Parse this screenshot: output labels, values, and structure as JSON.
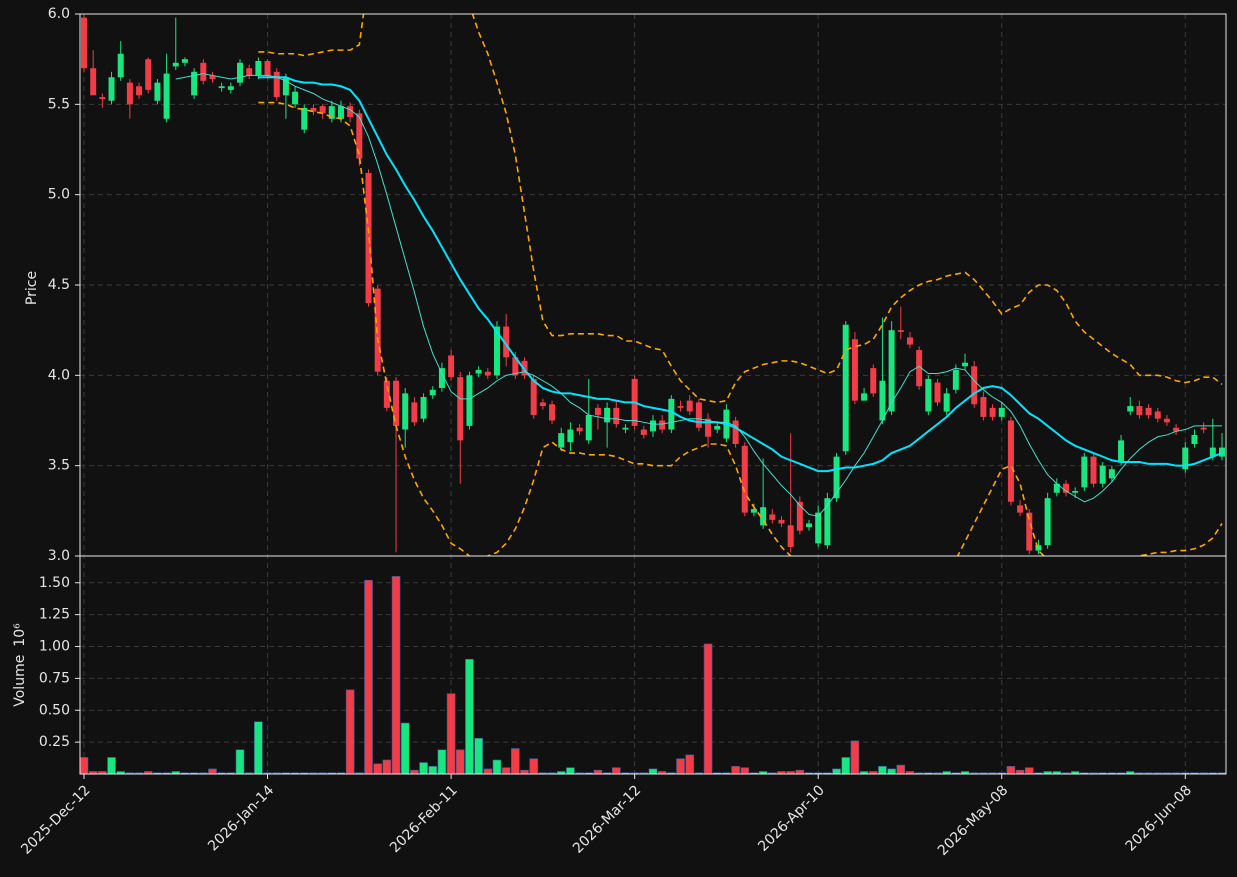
{
  "chart_data": {
    "type": "candlestick",
    "categories": [
      "2025-Dec-12",
      null,
      null,
      null,
      null,
      null,
      null,
      null,
      null,
      null,
      null,
      null,
      null,
      null,
      null,
      null,
      null,
      null,
      null,
      null,
      "2026-Jan-14",
      null,
      null,
      null,
      null,
      null,
      null,
      null,
      null,
      null,
      null,
      null,
      null,
      null,
      null,
      null,
      null,
      null,
      null,
      null,
      "2026-Feb-11",
      null,
      null,
      null,
      null,
      null,
      null,
      null,
      null,
      null,
      null,
      null,
      null,
      null,
      null,
      null,
      null,
      null,
      null,
      null,
      "2026-Mar-12",
      null,
      null,
      null,
      null,
      null,
      null,
      null,
      null,
      null,
      null,
      null,
      null,
      null,
      null,
      null,
      null,
      null,
      null,
      null,
      "2026-Apr-10",
      null,
      null,
      null,
      null,
      null,
      null,
      null,
      null,
      null,
      null,
      null,
      null,
      null,
      null,
      null,
      null,
      null,
      null,
      null,
      "2026-May-08",
      null,
      null,
      null,
      null,
      null,
      null,
      null,
      null,
      null,
      null,
      null,
      null,
      null,
      null,
      null,
      null,
      null,
      null,
      null,
      "2026-Jun-08",
      null,
      null,
      null,
      null
    ],
    "open": [
      5.98,
      5.7,
      5.54,
      5.52,
      5.65,
      5.62,
      5.6,
      5.75,
      5.52,
      5.42,
      5.71,
      5.73,
      5.55,
      5.73,
      5.66,
      5.59,
      5.58,
      5.62,
      5.7,
      5.66,
      5.74,
      5.68,
      5.55,
      5.5,
      5.36,
      5.48,
      5.49,
      5.42,
      5.42,
      5.49,
      5.45,
      5.12,
      4.48,
      3.97,
      3.97,
      3.7,
      3.85,
      3.76,
      3.89,
      3.93,
      4.11,
      3.99,
      3.72,
      4.01,
      4.02,
      4.0,
      4.27,
      4.1,
      4.08,
      3.98,
      3.85,
      3.84,
      3.6,
      3.63,
      3.71,
      3.64,
      3.82,
      3.74,
      3.82,
      3.7,
      3.98,
      3.7,
      3.69,
      3.75,
      3.7,
      3.83,
      3.86,
      3.85,
      3.76,
      3.7,
      3.65,
      3.75,
      3.61,
      3.24,
      3.17,
      3.23,
      3.2,
      3.17,
      3.3,
      3.16,
      3.07,
      3.06,
      3.32,
      3.58,
      4.2,
      3.86,
      4.04,
      3.75,
      3.8,
      4.25,
      4.21,
      4.14,
      3.8,
      3.96,
      3.8,
      3.92,
      4.05,
      4.05,
      3.88,
      3.82,
      3.77,
      3.75,
      3.28,
      3.24,
      3.03,
      3.06,
      3.35,
      3.4,
      3.35,
      3.38,
      3.55,
      3.4,
      3.43,
      3.52,
      3.8,
      3.83,
      3.82,
      3.8,
      3.76,
      3.71,
      3.48,
      3.62,
      3.71,
      3.55,
      3.55
    ],
    "high": [
      6.0,
      5.8,
      5.56,
      5.68,
      5.85,
      5.64,
      5.62,
      5.76,
      5.64,
      5.78,
      5.98,
      5.76,
      5.7,
      5.75,
      5.68,
      5.62,
      5.62,
      5.75,
      5.72,
      5.76,
      5.75,
      5.7,
      5.67,
      5.6,
      5.5,
      5.5,
      5.5,
      5.52,
      5.52,
      5.51,
      5.47,
      5.14,
      4.5,
      3.99,
      3.99,
      3.93,
      3.88,
      3.9,
      3.94,
      4.07,
      4.14,
      4.02,
      4.02,
      4.05,
      4.04,
      4.3,
      4.34,
      4.13,
      4.1,
      4.0,
      3.87,
      3.86,
      3.71,
      3.74,
      3.73,
      3.98,
      3.84,
      3.85,
      3.86,
      3.73,
      4.0,
      3.72,
      3.78,
      3.78,
      3.89,
      3.86,
      3.89,
      3.87,
      3.79,
      3.74,
      3.84,
      3.77,
      3.63,
      3.29,
      3.54,
      3.26,
      3.22,
      3.68,
      3.33,
      3.2,
      3.28,
      3.35,
      3.57,
      4.3,
      4.24,
      3.93,
      4.06,
      4.32,
      4.3,
      4.38,
      4.24,
      4.16,
      4.0,
      3.98,
      3.93,
      4.06,
      4.12,
      4.08,
      3.91,
      3.84,
      3.85,
      3.77,
      3.31,
      3.26,
      3.09,
      3.35,
      3.43,
      3.42,
      3.38,
      3.57,
      3.57,
      3.52,
      3.5,
      3.67,
      3.88,
      3.86,
      3.84,
      3.82,
      3.78,
      3.73,
      3.63,
      3.7,
      3.74,
      3.76,
      3.68
    ],
    "low": [
      5.68,
      5.55,
      5.48,
      5.5,
      5.63,
      5.42,
      5.53,
      5.56,
      5.5,
      5.4,
      5.69,
      5.71,
      5.53,
      5.61,
      5.62,
      5.57,
      5.56,
      5.6,
      5.64,
      5.64,
      5.64,
      5.52,
      5.42,
      5.48,
      5.34,
      5.44,
      5.42,
      5.4,
      5.4,
      5.4,
      5.16,
      4.38,
      4.0,
      3.8,
      3.02,
      3.6,
      3.72,
      3.74,
      3.87,
      3.91,
      3.97,
      3.4,
      3.7,
      3.99,
      3.98,
      3.98,
      4.05,
      3.98,
      3.98,
      3.76,
      3.81,
      3.73,
      3.58,
      3.58,
      3.67,
      3.62,
      3.7,
      3.6,
      3.71,
      3.68,
      3.7,
      3.65,
      3.66,
      3.68,
      3.68,
      3.8,
      3.78,
      3.69,
      3.6,
      3.68,
      3.63,
      3.6,
      3.22,
      3.22,
      3.15,
      3.18,
      3.16,
      3.02,
      3.12,
      3.14,
      3.05,
      3.04,
      3.3,
      3.56,
      3.84,
      3.88,
      3.88,
      3.73,
      3.78,
      4.2,
      4.15,
      3.92,
      3.78,
      3.83,
      3.78,
      3.9,
      4.03,
      3.82,
      3.75,
      3.75,
      3.75,
      3.28,
      3.22,
      3.01,
      3.01,
      3.04,
      3.33,
      3.33,
      3.32,
      3.36,
      3.38,
      3.38,
      3.41,
      3.5,
      3.78,
      3.76,
      3.76,
      3.74,
      3.72,
      3.67,
      3.46,
      3.6,
      3.68,
      3.53,
      3.53
    ],
    "close": [
      5.7,
      5.55,
      5.53,
      5.65,
      5.78,
      5.5,
      5.55,
      5.58,
      5.62,
      5.67,
      5.73,
      5.75,
      5.68,
      5.63,
      5.64,
      5.6,
      5.6,
      5.73,
      5.66,
      5.74,
      5.66,
      5.54,
      5.65,
      5.57,
      5.48,
      5.46,
      5.45,
      5.49,
      5.49,
      5.43,
      5.2,
      4.4,
      4.02,
      3.82,
      3.72,
      3.9,
      3.74,
      3.88,
      3.92,
      4.04,
      3.99,
      3.64,
      4.0,
      4.03,
      4.0,
      4.27,
      4.1,
      4.0,
      4.0,
      3.78,
      3.83,
      3.75,
      3.68,
      3.7,
      3.69,
      3.78,
      3.78,
      3.82,
      3.73,
      3.71,
      3.72,
      3.67,
      3.75,
      3.7,
      3.87,
      3.82,
      3.8,
      3.71,
      3.66,
      3.72,
      3.81,
      3.62,
      3.24,
      3.26,
      3.27,
      3.2,
      3.18,
      3.05,
      3.14,
      3.18,
      3.24,
      3.32,
      3.55,
      4.28,
      3.86,
      3.9,
      3.9,
      3.97,
      4.25,
      4.24,
      4.17,
      3.94,
      3.98,
      3.85,
      3.9,
      4.03,
      4.07,
      3.84,
      3.77,
      3.77,
      3.82,
      3.3,
      3.24,
      3.03,
      3.06,
      3.32,
      3.4,
      3.35,
      3.36,
      3.55,
      3.4,
      3.5,
      3.48,
      3.64,
      3.83,
      3.78,
      3.78,
      3.76,
      3.74,
      3.69,
      3.6,
      3.67,
      3.7,
      3.6,
      3.6
    ],
    "volume": [
      0.13,
      0.02,
      0.02,
      0.13,
      0.02,
      0.01,
      0.01,
      0.02,
      0.01,
      0.01,
      0.02,
      0.01,
      0.01,
      0.01,
      0.04,
      0.01,
      0.01,
      0.19,
      0.01,
      0.41,
      0.01,
      0.01,
      0.01,
      0.01,
      0.01,
      0.01,
      0.01,
      0.01,
      0.01,
      0.66,
      0.01,
      1.52,
      0.08,
      0.11,
      1.55,
      0.4,
      0.03,
      0.09,
      0.06,
      0.19,
      0.63,
      0.19,
      0.9,
      0.28,
      0.04,
      0.11,
      0.05,
      0.2,
      0.03,
      0.12,
      0.01,
      0.01,
      0.02,
      0.05,
      0.01,
      0.01,
      0.03,
      0.01,
      0.05,
      0.01,
      0.01,
      0.01,
      0.04,
      0.02,
      0.01,
      0.12,
      0.15,
      0.01,
      1.02,
      0.01,
      0.01,
      0.06,
      0.05,
      0.01,
      0.02,
      0.01,
      0.02,
      0.02,
      0.03,
      0.01,
      0.01,
      0.01,
      0.04,
      0.13,
      0.26,
      0.02,
      0.02,
      0.06,
      0.04,
      0.07,
      0.02,
      0.01,
      0.01,
      0.01,
      0.02,
      0.01,
      0.02,
      0.01,
      0.01,
      0.01,
      0.01,
      0.06,
      0.03,
      0.05,
      0.01,
      0.02,
      0.02,
      0.01,
      0.02,
      0.01,
      0.01,
      0.01,
      0.01,
      0.01,
      0.02,
      0.01,
      0.01,
      0.01,
      0.01,
      0.01,
      0.01,
      0.01,
      0.01,
      0.01,
      0.01
    ],
    "up_color": "#19e680",
    "down_color": "#f23c48",
    "ylabel": "Price",
    "volume_ylabel": "Volume",
    "volume_scale": "10⁶",
    "ylim": [
      3.0,
      6.0
    ],
    "yticks": [
      {
        "value": 3.0,
        "label": "3.0"
      },
      {
        "value": 3.5,
        "label": "3.5"
      },
      {
        "value": 4.0,
        "label": "4.0"
      },
      {
        "value": 4.5,
        "label": "4.5"
      },
      {
        "value": 5.0,
        "label": "5.0"
      },
      {
        "value": 5.5,
        "label": "5.5"
      },
      {
        "value": 6.0,
        "label": "6.0"
      }
    ],
    "volume_ylim": [
      0,
      1.71
    ],
    "volume_yticks": [
      {
        "value": 0.25,
        "label": "0.25"
      },
      {
        "value": 0.5,
        "label": "0.50"
      },
      {
        "value": 0.75,
        "label": "0.75"
      },
      {
        "value": 1.0,
        "label": "1.00"
      },
      {
        "value": 1.25,
        "label": "1.25"
      },
      {
        "value": 1.5,
        "label": "1.50"
      }
    ],
    "grid": true,
    "overlays": [
      {
        "color": "#ffa500",
        "width": 1.6,
        "dash": true,
        "values": [
          null,
          null,
          null,
          null,
          null,
          null,
          null,
          null,
          null,
          null,
          null,
          null,
          null,
          null,
          null,
          null,
          null,
          null,
          null,
          5.79,
          5.79,
          5.78,
          5.78,
          5.78,
          5.77,
          5.78,
          5.79,
          5.8,
          5.8,
          5.8,
          5.83,
          6.2,
          6.5,
          6.8,
          7.0,
          7.1,
          7.2,
          7.2,
          7.1,
          6.9,
          6.6,
          6.3,
          6.05,
          5.9,
          5.78,
          5.62,
          5.45,
          5.22,
          4.9,
          4.58,
          4.3,
          4.22,
          4.22,
          4.23,
          4.23,
          4.23,
          4.23,
          4.22,
          4.22,
          4.19,
          4.19,
          4.17,
          4.15,
          4.14,
          4.05,
          3.97,
          3.92,
          3.87,
          3.86,
          3.85,
          3.86,
          3.96,
          4.02,
          4.04,
          4.06,
          4.07,
          4.08,
          4.08,
          4.07,
          4.05,
          4.03,
          4.01,
          4.03,
          4.14,
          4.16,
          4.17,
          4.2,
          4.28,
          4.38,
          4.43,
          4.47,
          4.5,
          4.52,
          4.53,
          4.55,
          4.56,
          4.57,
          4.53,
          4.47,
          4.41,
          4.34,
          4.37,
          4.39,
          4.46,
          4.5,
          4.5,
          4.47,
          4.4,
          4.3,
          4.24,
          4.2,
          4.16,
          4.12,
          4.09,
          4.06,
          4.0,
          4.0,
          4.0,
          3.99,
          3.97,
          3.96,
          3.97,
          3.99,
          3.99,
          3.95
        ]
      },
      {
        "color": "#ffa500",
        "width": 1.6,
        "dash": true,
        "values": [
          null,
          null,
          null,
          null,
          null,
          null,
          null,
          null,
          null,
          null,
          null,
          null,
          null,
          null,
          null,
          null,
          null,
          null,
          null,
          5.51,
          5.51,
          5.51,
          5.5,
          5.48,
          5.47,
          5.46,
          5.45,
          5.43,
          5.42,
          5.38,
          5.22,
          4.8,
          4.2,
          3.95,
          3.72,
          3.55,
          3.42,
          3.32,
          3.25,
          3.17,
          3.07,
          3.04,
          3.0,
          2.98,
          3.0,
          3.02,
          3.07,
          3.15,
          3.27,
          3.42,
          3.6,
          3.63,
          3.59,
          3.57,
          3.57,
          3.56,
          3.56,
          3.56,
          3.55,
          3.53,
          3.51,
          3.51,
          3.5,
          3.5,
          3.5,
          3.55,
          3.58,
          3.6,
          3.62,
          3.62,
          3.61,
          3.5,
          3.35,
          3.27,
          3.2,
          3.12,
          3.05,
          3.0,
          2.95,
          2.92,
          2.9,
          2.93,
          2.93,
          2.84,
          2.82,
          2.83,
          2.82,
          2.78,
          2.76,
          2.75,
          2.75,
          2.78,
          2.82,
          2.87,
          2.92,
          2.98,
          3.08,
          3.18,
          3.28,
          3.38,
          3.48,
          3.5,
          3.4,
          3.2,
          3.03,
          2.98,
          2.95,
          2.92,
          2.92,
          2.94,
          2.94,
          2.94,
          2.95,
          2.96,
          2.98,
          3.0,
          3.01,
          3.02,
          3.02,
          3.03,
          3.03,
          3.04,
          3.06,
          3.1,
          3.18
        ]
      },
      {
        "color": "#00e5ff",
        "width": 2,
        "dash": false,
        "values": [
          null,
          null,
          null,
          null,
          null,
          null,
          null,
          null,
          null,
          null,
          null,
          null,
          null,
          null,
          null,
          null,
          null,
          null,
          null,
          5.65,
          5.65,
          5.65,
          5.65,
          5.63,
          5.62,
          5.62,
          5.61,
          5.61,
          5.6,
          5.58,
          5.52,
          5.42,
          5.32,
          5.22,
          5.14,
          5.05,
          4.97,
          4.88,
          4.8,
          4.71,
          4.62,
          4.53,
          4.45,
          4.37,
          4.31,
          4.24,
          4.17,
          4.1,
          4.03,
          3.97,
          3.93,
          3.91,
          3.9,
          3.9,
          3.89,
          3.88,
          3.87,
          3.87,
          3.86,
          3.85,
          3.85,
          3.83,
          3.82,
          3.81,
          3.8,
          3.77,
          3.75,
          3.74,
          3.74,
          3.74,
          3.73,
          3.71,
          3.68,
          3.65,
          3.62,
          3.59,
          3.55,
          3.53,
          3.51,
          3.49,
          3.47,
          3.47,
          3.48,
          3.49,
          3.49,
          3.5,
          3.51,
          3.53,
          3.57,
          3.59,
          3.61,
          3.65,
          3.69,
          3.73,
          3.77,
          3.82,
          3.86,
          3.9,
          3.93,
          3.94,
          3.93,
          3.89,
          3.84,
          3.79,
          3.76,
          3.72,
          3.68,
          3.64,
          3.61,
          3.59,
          3.57,
          3.55,
          3.53,
          3.52,
          3.52,
          3.52,
          3.51,
          3.51,
          3.51,
          3.5,
          3.5,
          3.51,
          3.53,
          3.55,
          3.57
        ]
      },
      {
        "color": "#40e0d0",
        "width": 1,
        "dash": false,
        "values": [
          null,
          null,
          null,
          null,
          null,
          null,
          null,
          null,
          null,
          null,
          5.64,
          5.65,
          5.66,
          5.67,
          5.66,
          5.65,
          5.64,
          5.65,
          5.66,
          5.66,
          5.66,
          5.65,
          5.63,
          5.6,
          5.58,
          5.56,
          5.53,
          5.51,
          5.49,
          5.47,
          5.43,
          5.32,
          5.17,
          5.0,
          4.82,
          4.64,
          4.46,
          4.27,
          4.12,
          4.01,
          3.91,
          3.87,
          3.87,
          3.9,
          3.93,
          3.97,
          4.0,
          4.01,
          4.02,
          4.0,
          3.97,
          3.94,
          3.9,
          3.85,
          3.82,
          3.78,
          3.77,
          3.76,
          3.76,
          3.75,
          3.75,
          3.74,
          3.73,
          3.73,
          3.74,
          3.75,
          3.76,
          3.76,
          3.75,
          3.74,
          3.74,
          3.72,
          3.66,
          3.58,
          3.51,
          3.45,
          3.39,
          3.34,
          3.28,
          3.23,
          3.22,
          3.28,
          3.35,
          3.42,
          3.5,
          3.57,
          3.66,
          3.75,
          3.85,
          3.93,
          4.02,
          4.05,
          4.01,
          4.01,
          4.02,
          4.04,
          4.03,
          3.97,
          3.92,
          3.88,
          3.85,
          3.8,
          3.72,
          3.62,
          3.53,
          3.45,
          3.4,
          3.36,
          3.33,
          3.3,
          3.32,
          3.36,
          3.41,
          3.48,
          3.54,
          3.59,
          3.63,
          3.66,
          3.67,
          3.69,
          3.7,
          3.72,
          3.72,
          3.72,
          3.72
        ]
      }
    ]
  }
}
